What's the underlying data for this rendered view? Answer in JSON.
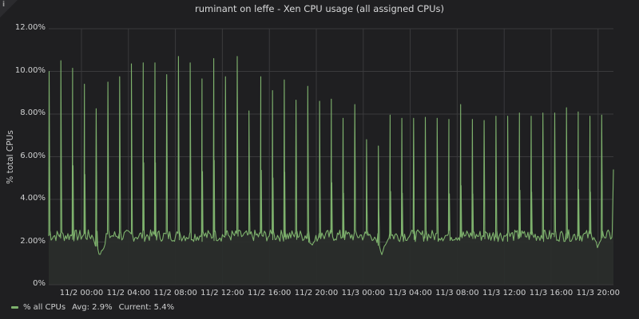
{
  "panel": {
    "info_icon": "i",
    "title": "ruminant on leffe - Xen CPU usage (all assigned CPUs)"
  },
  "colors": {
    "background": "#1f1f21",
    "plot_fill": "#2a2d2b",
    "series": "#7eb26d",
    "grid": "#3a3a3c"
  },
  "legend": {
    "series_name": "% all CPUs",
    "avg": "Avg: 2.9%",
    "current": "Current: 5.4%"
  },
  "chart_data": {
    "type": "line",
    "title": "ruminant on leffe - Xen CPU usage (all assigned CPUs)",
    "xlabel": "",
    "ylabel": "% total CPUs",
    "ylim": [
      0,
      12
    ],
    "yticks": [
      "0%",
      "2.00%",
      "4.00%",
      "6.00%",
      "8.00%",
      "10.00%",
      "12.00%"
    ],
    "xticks": [
      "11/2 00:00",
      "11/2 04:00",
      "11/2 08:00",
      "11/2 12:00",
      "11/2 16:00",
      "11/2 20:00",
      "11/3 00:00",
      "11/3 04:00",
      "11/3 08:00",
      "11/3 12:00",
      "11/3 16:00",
      "11/3 20:00"
    ],
    "grid": true,
    "legend_position": "bottom-left",
    "baseline_pct": 2.3,
    "series": [
      {
        "name": "% all CPUs",
        "avg": 2.9,
        "current": 5.4,
        "hourly_spike_peaks_pct": [
          10.0,
          10.5,
          10.15,
          9.4,
          8.25,
          9.5,
          9.75,
          10.35,
          10.4,
          10.4,
          9.85,
          10.7,
          10.4,
          9.65,
          10.6,
          9.75,
          10.7,
          8.15,
          9.75,
          9.1,
          9.6,
          8.65,
          9.3,
          8.6,
          8.7,
          7.8,
          8.45,
          6.8,
          6.5,
          7.95,
          7.8,
          7.8,
          7.85,
          7.8,
          7.75,
          8.45,
          7.75,
          7.7,
          7.9,
          7.9,
          8.05,
          7.9,
          8.05,
          8.05,
          8.3,
          8.1,
          7.9,
          7.95
        ],
        "dips_pct": [
          {
            "time": "11/1 23:00",
            "value": 1.3
          },
          {
            "time": "11/2 22:30",
            "value": 1.7
          },
          {
            "time": "11/3 00:30",
            "value": 1.4
          },
          {
            "time": "11/3 19:00",
            "value": 1.7
          }
        ]
      }
    ]
  }
}
